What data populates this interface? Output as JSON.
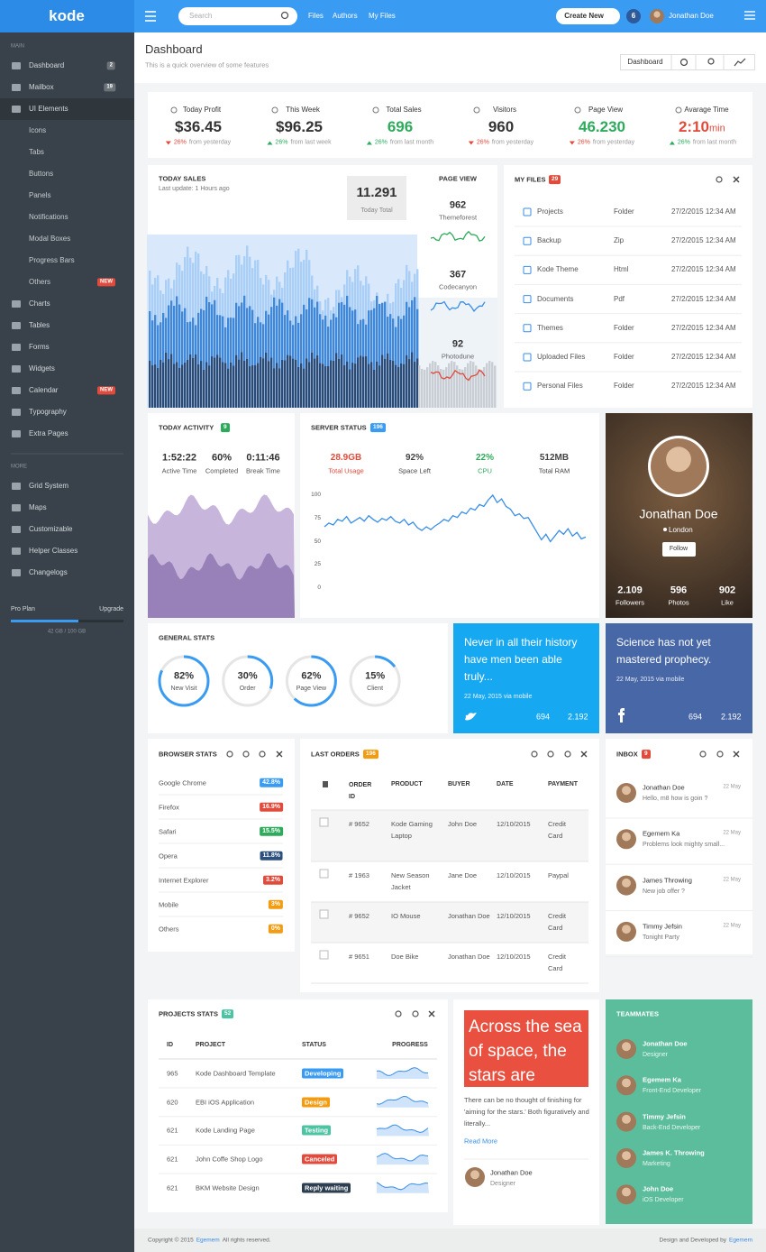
{
  "topbar": {
    "logo": "kode",
    "search_placeholder": "Search",
    "links": [
      "Files",
      "Authors",
      "My Files"
    ],
    "create_button": "Create New",
    "notifications": "6",
    "user": "Jonathan Doe"
  },
  "sidebar": {
    "sections": [
      {
        "label": "MAIN",
        "items": [
          {
            "label": "Dashboard",
            "badge": "2",
            "badge_color": "#6b7379"
          },
          {
            "label": "Mailbox",
            "badge": "19",
            "badge_color": "#6b7379"
          },
          {
            "label": "UI Elements",
            "children": [
              {
                "label": "Icons"
              },
              {
                "label": "Tabs"
              },
              {
                "label": "Buttons"
              },
              {
                "label": "Panels"
              },
              {
                "label": "Notifications"
              },
              {
                "label": "Modal Boxes"
              },
              {
                "label": "Progress Bars"
              },
              {
                "label": "Others",
                "badge": "NEW",
                "badge_color": "#e04b3c"
              }
            ]
          },
          {
            "label": "Charts"
          },
          {
            "label": "Tables"
          },
          {
            "label": "Forms"
          },
          {
            "label": "Widgets"
          },
          {
            "label": "Calendar",
            "badge": "NEW",
            "badge_color": "#e04b3c"
          },
          {
            "label": "Typography"
          },
          {
            "label": "Extra Pages"
          }
        ]
      },
      {
        "label": "MORE",
        "items": [
          {
            "label": "Grid System"
          },
          {
            "label": "Maps"
          },
          {
            "label": "Customizable"
          },
          {
            "label": "Helper Classes"
          },
          {
            "label": "Changelogs"
          }
        ]
      }
    ],
    "plan": {
      "name": "Pro Plan",
      "action": "Upgrade",
      "usage": "42 GB / 100 GB"
    }
  },
  "header": {
    "title": "Dashboard",
    "subtitle": "This is a quick overview of some features",
    "button": "Dashboard"
  },
  "stats": [
    {
      "label": "Today Profit",
      "value": "$36.45",
      "color": "#333333",
      "trend": "down",
      "change": "26%",
      "note": "from yesterday"
    },
    {
      "label": "This Week",
      "value": "$96.25",
      "color": "#333333",
      "trend": "up",
      "change": "26%",
      "note": "from last week"
    },
    {
      "label": "Total Sales",
      "value": "696",
      "color": "#2eaa5c",
      "trend": "up",
      "change": "26%",
      "note": "from last month"
    },
    {
      "label": "Visitors",
      "value": "960",
      "color": "#333333",
      "trend": "down",
      "change": "26%",
      "note": "from yesterday"
    },
    {
      "label": "Page View",
      "value": "46.230",
      "color": "#2eaa5c",
      "trend": "down",
      "change": "26%",
      "note": "from yesterday"
    },
    {
      "label": "Avarage Time",
      "value": "2:10",
      "unit": "min",
      "color": "#e04b3c",
      "trend": "up",
      "change": "26%",
      "note": "from last month"
    }
  ],
  "today_sales": {
    "title": "TODAY SALES",
    "subtitle": "Last update: 1 Hours ago",
    "total": "11.291",
    "total_label": "Today Total",
    "page_view_title": "PAGE VIEW",
    "page_views": [
      {
        "value": "962",
        "label": "Themeforest",
        "color": "#2eaa5c"
      },
      {
        "value": "367",
        "label": "Codecanyon",
        "color": "#3a8ee6"
      },
      {
        "value": "92",
        "label": "Photodune",
        "color": "#e04b3c"
      }
    ]
  },
  "my_files": {
    "title": "MY FILES",
    "count": "29",
    "files": [
      {
        "name": "Projects",
        "type": "Folder",
        "date": "27/2/2015 12:34 AM"
      },
      {
        "name": "Backup",
        "type": "Zip",
        "date": "27/2/2015 12:34 AM"
      },
      {
        "name": "Kode Theme",
        "type": "Html",
        "date": "27/2/2015 12:34 AM"
      },
      {
        "name": "Documents",
        "type": "Pdf",
        "date": "27/2/2015 12:34 AM"
      },
      {
        "name": "Themes",
        "type": "Folder",
        "date": "27/2/2015 12:34 AM"
      },
      {
        "name": "Uploaded Files",
        "type": "Folder",
        "date": "27/2/2015 12:34 AM"
      },
      {
        "name": "Personal Files",
        "type": "Folder",
        "date": "27/2/2015 12:34 AM"
      }
    ]
  },
  "today_activity": {
    "title": "TODAY ACTIVITY",
    "count": "9",
    "metrics": [
      {
        "value": "1:52:22",
        "label": "Active Time"
      },
      {
        "value": "60%",
        "label": "Completed"
      },
      {
        "value": "0:11:46",
        "label": "Break Time"
      }
    ]
  },
  "server_status": {
    "title": "SERVER STATUS",
    "count": "196",
    "metrics": [
      {
        "value": "28.9GB",
        "label": "Total Usage",
        "color": "#e04b3c"
      },
      {
        "value": "92%",
        "label": "Space Left",
        "color": "#444444"
      },
      {
        "value": "22%",
        "label": "CPU",
        "color": "#2eaa5c"
      },
      {
        "value": "512MB",
        "label": "Total RAM",
        "color": "#444444"
      }
    ],
    "chart": {
      "type": "line",
      "color": "#3a8ee6",
      "ylim": [
        0,
        100
      ],
      "yticks": [
        0,
        25,
        50,
        75,
        100
      ],
      "values": [
        66,
        70,
        68,
        74,
        72,
        77,
        70,
        73,
        76,
        72,
        78,
        74,
        71,
        75,
        73,
        77,
        72,
        70,
        74,
        68,
        71,
        65,
        62,
        66,
        63,
        67,
        70,
        74,
        72,
        78,
        76,
        82,
        80,
        86,
        84,
        90,
        88,
        95,
        100,
        92,
        96,
        88,
        85,
        78,
        80,
        75,
        76,
        68,
        60,
        52,
        58,
        50,
        56,
        62,
        58,
        64,
        56,
        60,
        53,
        55
      ]
    }
  },
  "profile": {
    "name": "Jonathan Doe",
    "location": "London",
    "button": "Follow",
    "stats": [
      {
        "value": "2.109",
        "label": "Followers"
      },
      {
        "value": "596",
        "label": "Photos"
      },
      {
        "value": "902",
        "label": "Like"
      }
    ]
  },
  "general_stats": {
    "title": "GENERAL STATS",
    "items": [
      {
        "value": 82,
        "label": "82%",
        "name": "New Visit"
      },
      {
        "value": 30,
        "label": "30%",
        "name": "Order"
      },
      {
        "value": 62,
        "label": "62%",
        "name": "Page View"
      },
      {
        "value": 15,
        "label": "15%",
        "name": "Client"
      }
    ]
  },
  "tweet": {
    "text": "Never in all their history have men been able truly...",
    "meta": "22 May, 2015 via mobile",
    "retweets": "694",
    "favorites": "2.192"
  },
  "facebook": {
    "text": "Science has not yet mastered prophecy.",
    "meta": "22 May, 2015 via mobile",
    "likes": "694",
    "comments": "2.192"
  },
  "browser_stats": {
    "title": "BROWSER STATS",
    "rows": [
      {
        "name": "Google Chrome",
        "share": "42.8%",
        "color": "#3a9bf3"
      },
      {
        "name": "Firefox",
        "share": "16.9%",
        "color": "#e04b3c"
      },
      {
        "name": "Safari",
        "share": "15.5%",
        "color": "#2eaa5c"
      },
      {
        "name": "Opera",
        "share": "11.8%",
        "color": "#2c4f7c"
      },
      {
        "name": "Internet Explorer",
        "share": "3.2%",
        "color": "#e04b3c"
      },
      {
        "name": "Mobile",
        "share": "3%",
        "color": "#f39c12"
      },
      {
        "name": "Others",
        "share": "0%",
        "color": "#f39c12"
      }
    ]
  },
  "last_orders": {
    "title": "LAST ORDERS",
    "count": "196",
    "columns": [
      "ORDER ID",
      "PRODUCT",
      "BUYER",
      "DATE",
      "PAYMENT"
    ],
    "rows": [
      [
        "# 9652",
        "Kode Gaming Laptop",
        "John Doe",
        "12/10/2015",
        "Credit Card"
      ],
      [
        "# 1963",
        "New Season Jacket",
        "Jane Doe",
        "12/10/2015",
        "Paypal"
      ],
      [
        "# 9652",
        "IO Mouse",
        "Jonathan Doe",
        "12/10/2015",
        "Credit Card"
      ],
      [
        "# 9651",
        "Doe Bike",
        "Jonathan Doe",
        "12/10/2015",
        "Credit Card"
      ]
    ]
  },
  "inbox": {
    "title": "INBOX",
    "count": "9",
    "messages": [
      {
        "name": "Jonathan Doe",
        "date": "22 May",
        "text": "Hello, m8 how is goin ?"
      },
      {
        "name": "Egemem Ka",
        "date": "22 May",
        "text": "Problems look mighty small..."
      },
      {
        "name": "James Throwing",
        "date": "22 May",
        "text": "New job offer ?"
      },
      {
        "name": "Timmy Jefsin",
        "date": "22 May",
        "text": "Tonight Party"
      }
    ]
  },
  "projects": {
    "title": "PROJECTS STATS",
    "count": "52",
    "columns": [
      "ID",
      "PROJECT",
      "STATUS",
      "PROGRESS"
    ],
    "rows": [
      {
        "id": "965",
        "project": "Kode Dashboard Template",
        "status": "Developing",
        "color": "#3a9bf3"
      },
      {
        "id": "620",
        "project": "EBI iOS Application",
        "status": "Design",
        "color": "#f39c12"
      },
      {
        "id": "621",
        "project": "Kode Landing Page",
        "status": "Testing",
        "color": "#4cc3a3"
      },
      {
        "id": "621",
        "project": "John Coffe Shop Logo",
        "status": "Canceled",
        "color": "#e04b3c"
      },
      {
        "id": "621",
        "project": "BKM Website Design",
        "status": "Reply waiting",
        "color": "#2c3e50"
      }
    ]
  },
  "article": {
    "headline": "Across the sea of space, the stars are",
    "text": "There can be no thought of finishing for 'aiming for the stars.' Both figuratively and literally...",
    "link": "Read More",
    "author": "Jonathan Doe",
    "role": "Designer"
  },
  "teammates": {
    "title": "TEAMMATES",
    "members": [
      {
        "name": "Jonathan Doe",
        "role": "Designer"
      },
      {
        "name": "Egemem Ka",
        "role": "Front-End Developer"
      },
      {
        "name": "Timmy Jefsin",
        "role": "Back-End Developer"
      },
      {
        "name": "James K. Throwing",
        "role": "Marketing"
      },
      {
        "name": "John Doe",
        "role": "iOS Developer"
      }
    ]
  },
  "footer": {
    "copyright": "Copyright © 2015",
    "copyright_link": "Egemem",
    "copyright_end": "All rights reserved.",
    "credit": "Design and Developed by",
    "credit_link": "Egemem"
  }
}
